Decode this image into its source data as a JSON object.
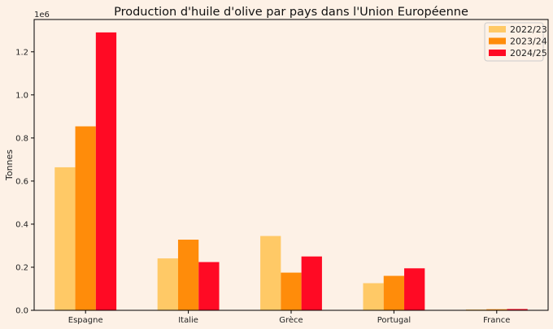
{
  "chart_data": {
    "type": "bar",
    "title": "Production d'huile d'olive par pays dans l'Union Européenne",
    "xlabel": "",
    "ylabel": "Tonnes",
    "y_scale_label": "1e6",
    "categories": [
      "Espagne",
      "Italie",
      "Grèce",
      "Portugal",
      "France"
    ],
    "series": [
      {
        "name": "2022/23",
        "color": "#ffc966",
        "values": [
          664000,
          241000,
          345000,
          126000,
          4000
        ]
      },
      {
        "name": "2023/24",
        "color": "#ff8c0a",
        "values": [
          854000,
          328000,
          175000,
          160000,
          5000
        ]
      },
      {
        "name": "2024/25",
        "color": "#ff0a24",
        "values": [
          1290000,
          224000,
          250000,
          195000,
          6000
        ]
      }
    ],
    "ylim": [
      0,
      1350000
    ],
    "yticks": [
      0,
      0.2,
      0.4,
      0.6,
      0.8,
      1.0,
      1.2
    ],
    "ytick_labels": [
      "0.0",
      "0.2",
      "0.4",
      "0.6",
      "0.8",
      "1.0",
      "1.2"
    ],
    "grid": false,
    "legend_position": "top-right",
    "background": "#fdf1e6"
  }
}
